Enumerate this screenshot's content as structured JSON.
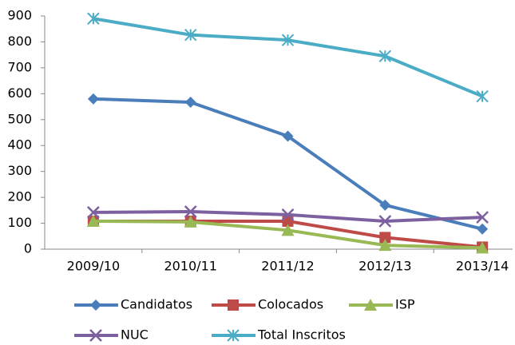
{
  "chart_data": {
    "type": "line",
    "categories": [
      "2009/10",
      "2010/11",
      "2011/12",
      "2012/13",
      "2013/14"
    ],
    "series": [
      {
        "name": "Candidatos",
        "color": "#4a7ebb",
        "marker": "diamond",
        "values": [
          580,
          567,
          436,
          170,
          78
        ]
      },
      {
        "name": "Colocados",
        "color": "#be4b48",
        "marker": "square",
        "values": [
          108,
          108,
          108,
          45,
          8
        ]
      },
      {
        "name": "ISP",
        "color": "#98b954",
        "marker": "triangle",
        "values": [
          108,
          105,
          73,
          15,
          5
        ]
      },
      {
        "name": "NUC",
        "color": "#7d60a0",
        "marker": "x",
        "values": [
          142,
          145,
          133,
          108,
          123
        ]
      },
      {
        "name": "Total Inscritos",
        "color": "#4bacc6",
        "marker": "asterisk",
        "values": [
          890,
          827,
          807,
          745,
          590
        ]
      }
    ],
    "ylim": [
      0,
      900
    ],
    "yticks": [
      0,
      100,
      200,
      300,
      400,
      500,
      600,
      700,
      800,
      900
    ],
    "grid": false,
    "legend": "bottom"
  }
}
